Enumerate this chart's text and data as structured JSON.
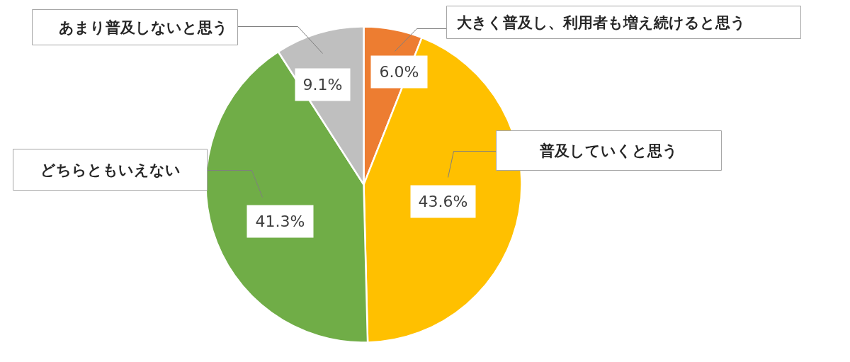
{
  "chart_data": {
    "type": "pie",
    "categories": [
      "大きく普及し、利用者も増え続けると思う",
      "普及していくと思う",
      "どちらともいえない",
      "あまり普及しないと思う"
    ],
    "values": [
      6.0,
      43.6,
      41.3,
      9.1
    ],
    "colors": [
      "#ed7d31",
      "#ffc000",
      "#70ad47",
      "#bfbfbf"
    ],
    "value_labels": [
      "6.0%",
      "43.6%",
      "41.3%",
      "9.1%"
    ]
  }
}
